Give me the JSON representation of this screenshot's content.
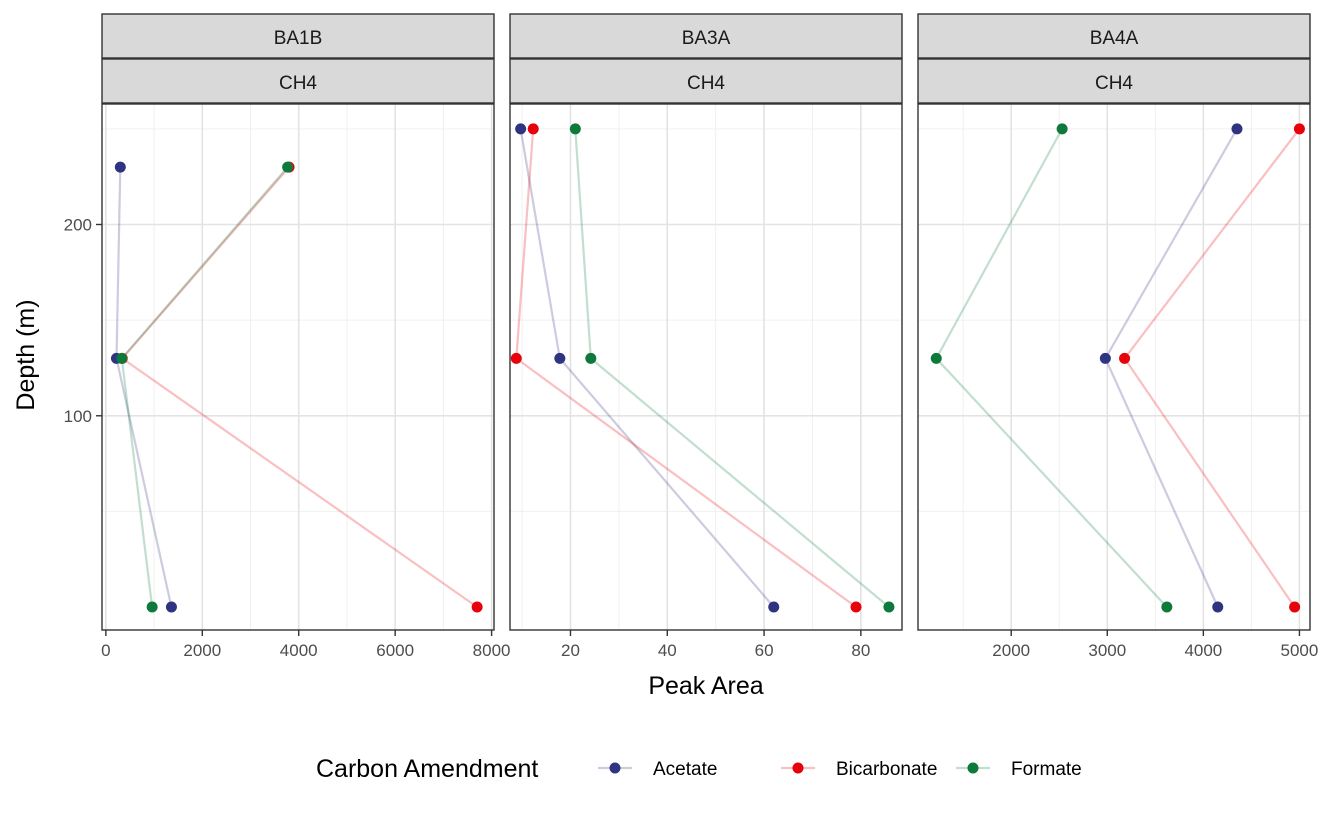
{
  "chart_data": {
    "type": "line",
    "xlabel": "Peak Area",
    "ylabel": "Depth (m)",
    "facet_row_label": "CH4",
    "legend": {
      "title": "Carbon Amendment",
      "position": "bottom",
      "items": [
        "Acetate",
        "Bicarbonate",
        "Formate"
      ]
    },
    "colors": {
      "Acetate": "#2e3480",
      "Bicarbonate": "#e8000b",
      "Formate": "#0d7a3c"
    },
    "y_reversed": true,
    "ylim": [
      263,
      -12
    ],
    "yticks": [
      100,
      200
    ],
    "panels": [
      {
        "label": "BA1B",
        "xlim": [
          -80,
          8050
        ],
        "xticks": [
          0,
          2000,
          4000,
          6000,
          8000
        ],
        "series": [
          {
            "name": "Acetate",
            "points": [
              [
                1360,
                0
              ],
              [
                220,
                130
              ],
              [
                300,
                230
              ]
            ]
          },
          {
            "name": "Bicarbonate",
            "points": [
              [
                7700,
                0
              ],
              [
                340,
                130
              ],
              [
                3800,
                230
              ]
            ]
          },
          {
            "name": "Formate",
            "points": [
              [
                960,
                0
              ],
              [
                330,
                130
              ],
              [
                3770,
                230
              ]
            ]
          }
        ]
      },
      {
        "label": "BA3A",
        "xlim": [
          7.5,
          88.5
        ],
        "xticks": [
          20,
          40,
          60,
          80
        ],
        "series": [
          {
            "name": "Acetate",
            "points": [
              [
                62,
                0
              ],
              [
                17.8,
                130
              ],
              [
                9.7,
                250
              ]
            ]
          },
          {
            "name": "Bicarbonate",
            "points": [
              [
                79,
                0
              ],
              [
                8.8,
                130
              ],
              [
                12.3,
                250
              ]
            ]
          },
          {
            "name": "Formate",
            "points": [
              [
                85.8,
                0
              ],
              [
                24.2,
                130
              ],
              [
                21,
                250
              ]
            ]
          }
        ]
      },
      {
        "label": "BA4A",
        "xlim": [
          1030,
          5110
        ],
        "xticks": [
          2000,
          3000,
          4000,
          5000
        ],
        "series": [
          {
            "name": "Acetate",
            "points": [
              [
                4150,
                0
              ],
              [
                2980,
                130
              ],
              [
                4350,
                250
              ]
            ]
          },
          {
            "name": "Bicarbonate",
            "points": [
              [
                4950,
                0
              ],
              [
                3180,
                130
              ],
              [
                5000,
                250
              ]
            ]
          },
          {
            "name": "Formate",
            "points": [
              [
                3620,
                0
              ],
              [
                1220,
                130
              ],
              [
                2530,
                250
              ]
            ]
          }
        ]
      }
    ]
  }
}
